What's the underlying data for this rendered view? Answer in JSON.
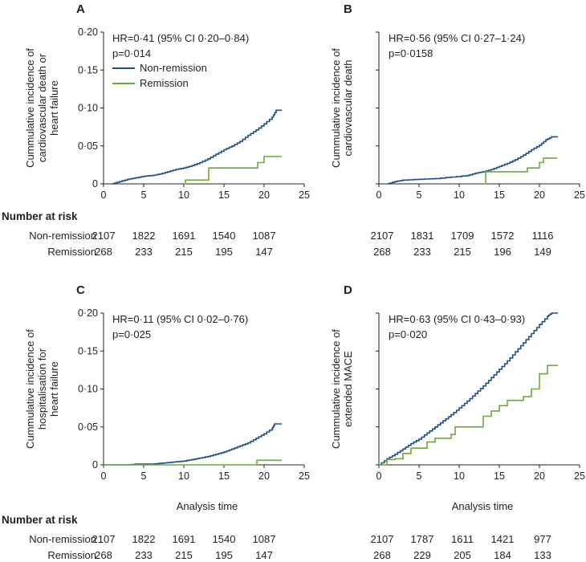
{
  "colors": {
    "non_remission": "#1f4e8c",
    "remission": "#6aaa3a",
    "axis": "#231f20"
  },
  "legend": {
    "non_remission": "Non-remission",
    "remission": "Remission"
  },
  "risk_table": {
    "title": "Number at risk",
    "row_labels": [
      "Non-remission",
      "Remission"
    ]
  },
  "chart_data": [
    {
      "type": "line",
      "panel": "A",
      "ylabel": [
        "Cummulative incidence of",
        "cardiovascular death or",
        "heart failure"
      ],
      "xlabel": "",
      "xlim": [
        0,
        25
      ],
      "ylim": [
        0,
        0.2
      ],
      "xticks": [
        "0",
        "5",
        "10",
        "15",
        "20",
        "25"
      ],
      "yticks": [
        "0",
        "0·05",
        "0·10",
        "0·15",
        "0·20"
      ],
      "annotation": [
        "HR=0·41 (95% CI 0·20–0·84)",
        "p=0·014"
      ],
      "legend": true,
      "series": [
        {
          "name": "Non-remission",
          "step": false,
          "points": [
            [
              1,
              0
            ],
            [
              2,
              0.003
            ],
            [
              3,
              0.006
            ],
            [
              4,
              0.008
            ],
            [
              5,
              0.01
            ],
            [
              6,
              0.011
            ],
            [
              7,
              0.013
            ],
            [
              8,
              0.016
            ],
            [
              9,
              0.019
            ],
            [
              10,
              0.021
            ],
            [
              11,
              0.024
            ],
            [
              12,
              0.028
            ],
            [
              13,
              0.033
            ],
            [
              14,
              0.039
            ],
            [
              15,
              0.045
            ],
            [
              16,
              0.05
            ],
            [
              17,
              0.056
            ],
            [
              18,
              0.064
            ],
            [
              19,
              0.071
            ],
            [
              20,
              0.079
            ],
            [
              21,
              0.088
            ],
            [
              21.5,
              0.097
            ],
            [
              22.2,
              0.097
            ]
          ]
        },
        {
          "name": "Remission",
          "step": true,
          "points": [
            [
              10,
              0
            ],
            [
              10.2,
              0.005
            ],
            [
              13,
              0.005
            ],
            [
              13.1,
              0.021
            ],
            [
              18.5,
              0.021
            ],
            [
              19.2,
              0.028
            ],
            [
              20,
              0.036
            ],
            [
              22.2,
              0.036
            ]
          ]
        }
      ],
      "risk": {
        "times": [
          "0",
          "5",
          "10",
          "15",
          "20"
        ],
        "non_remission": [
          "2107",
          "1822",
          "1691",
          "1540",
          "1087"
        ],
        "remission": [
          "268",
          "233",
          "215",
          "195",
          "147"
        ]
      }
    },
    {
      "type": "line",
      "panel": "B",
      "ylabel": [
        "Cummulative incidence of",
        "cardiovascular death"
      ],
      "xlabel": "",
      "xlim": [
        0,
        25
      ],
      "ylim": [
        0,
        0.2
      ],
      "xticks": [
        "0",
        "5",
        "10",
        "15",
        "20",
        "25"
      ],
      "yticks": [],
      "annotation": [
        "HR=0·56 (95% CI 0·27–1·24)",
        "p=0·0158"
      ],
      "legend": false,
      "series": [
        {
          "name": "Non-remission",
          "step": false,
          "points": [
            [
              1,
              0
            ],
            [
              2,
              0.003
            ],
            [
              3,
              0.005
            ],
            [
              5,
              0.006
            ],
            [
              7,
              0.007
            ],
            [
              9,
              0.009
            ],
            [
              11,
              0.011
            ],
            [
              12,
              0.014
            ],
            [
              13,
              0.016
            ],
            [
              14,
              0.019
            ],
            [
              15,
              0.023
            ],
            [
              16,
              0.027
            ],
            [
              17,
              0.032
            ],
            [
              18,
              0.038
            ],
            [
              19,
              0.045
            ],
            [
              20,
              0.051
            ],
            [
              20.8,
              0.058
            ],
            [
              21.5,
              0.062
            ],
            [
              22.3,
              0.062
            ]
          ]
        },
        {
          "name": "Remission",
          "step": true,
          "points": [
            [
              13,
              0
            ],
            [
              13.3,
              0.016
            ],
            [
              18,
              0.016
            ],
            [
              18.5,
              0.021
            ],
            [
              20,
              0.028
            ],
            [
              20.5,
              0.034
            ],
            [
              22.2,
              0.034
            ]
          ]
        }
      ],
      "risk": {
        "times": [
          "0",
          "5",
          "10",
          "15",
          "20"
        ],
        "non_remission": [
          "2107",
          "1831",
          "1709",
          "1572",
          "1116"
        ],
        "remission": [
          "268",
          "233",
          "215",
          "196",
          "149"
        ]
      }
    },
    {
      "type": "line",
      "panel": "C",
      "ylabel": [
        "Cummulative incidence of",
        "hospitalisation for",
        "heart failure"
      ],
      "xlabel": "Analysis time",
      "xlim": [
        0,
        25
      ],
      "ylim": [
        0,
        0.2
      ],
      "xticks": [
        "0",
        "5",
        "10",
        "15",
        "20",
        "25"
      ],
      "yticks": [
        "0",
        "0·05",
        "0·10",
        "0·15",
        "0·20"
      ],
      "annotation": [
        "HR=0·11 (95% CI 0·02–0·76)",
        "p=0·025"
      ],
      "legend": false,
      "series": [
        {
          "name": "Non-remission",
          "step": false,
          "points": [
            [
              0,
              0
            ],
            [
              3,
              0
            ],
            [
              4,
              0.001
            ],
            [
              6,
              0.001
            ],
            [
              7,
              0.002
            ],
            [
              8,
              0.003
            ],
            [
              9,
              0.004
            ],
            [
              10,
              0.005
            ],
            [
              11,
              0.007
            ],
            [
              12,
              0.009
            ],
            [
              13,
              0.011
            ],
            [
              14,
              0.014
            ],
            [
              15,
              0.017
            ],
            [
              16,
              0.021
            ],
            [
              17,
              0.025
            ],
            [
              18,
              0.029
            ],
            [
              19,
              0.035
            ],
            [
              20,
              0.041
            ],
            [
              21,
              0.048
            ],
            [
              21.3,
              0.054
            ],
            [
              22.2,
              0.054
            ]
          ]
        },
        {
          "name": "Remission",
          "step": true,
          "points": [
            [
              0,
              0
            ],
            [
              19,
              0
            ],
            [
              19.1,
              0.006
            ],
            [
              22.2,
              0.006
            ]
          ]
        }
      ],
      "risk": {
        "times": [
          "0",
          "5",
          "10",
          "15",
          "20"
        ],
        "non_remission": [
          "2107",
          "1822",
          "1691",
          "1540",
          "1087"
        ],
        "remission": [
          "268",
          "233",
          "215",
          "195",
          "147"
        ]
      }
    },
    {
      "type": "line",
      "panel": "D",
      "ylabel": [
        "Cummulative incidence of",
        "extended MACE"
      ],
      "xlabel": "Analysis time",
      "xlim": [
        0,
        25
      ],
      "ylim": [
        0,
        0.2
      ],
      "xticks": [
        "0",
        "5",
        "10",
        "15",
        "20",
        "25"
      ],
      "yticks": [],
      "annotation": [
        "HR=0·63 (95% CI 0·43–0·93)",
        "p=0·020"
      ],
      "legend": false,
      "series": [
        {
          "name": "Non-remission",
          "step": false,
          "points": [
            [
              0,
              0
            ],
            [
              1,
              0.008
            ],
            [
              2,
              0.014
            ],
            [
              3,
              0.021
            ],
            [
              4,
              0.028
            ],
            [
              5,
              0.034
            ],
            [
              6,
              0.042
            ],
            [
              7,
              0.05
            ],
            [
              8,
              0.058
            ],
            [
              9,
              0.066
            ],
            [
              10,
              0.075
            ],
            [
              11,
              0.084
            ],
            [
              12,
              0.094
            ],
            [
              13,
              0.104
            ],
            [
              14,
              0.115
            ],
            [
              15,
              0.126
            ],
            [
              16,
              0.137
            ],
            [
              17,
              0.149
            ],
            [
              18,
              0.161
            ],
            [
              19,
              0.173
            ],
            [
              20,
              0.185
            ],
            [
              21,
              0.196
            ],
            [
              21.5,
              0.2
            ],
            [
              22.3,
              0.2
            ]
          ]
        },
        {
          "name": "Remission",
          "step": true,
          "points": [
            [
              0,
              0
            ],
            [
              1,
              0.007
            ],
            [
              2,
              0.008
            ],
            [
              3,
              0.015
            ],
            [
              4,
              0.022
            ],
            [
              5,
              0.022
            ],
            [
              6,
              0.03
            ],
            [
              7,
              0.035
            ],
            [
              9,
              0.04
            ],
            [
              9.5,
              0.05
            ],
            [
              12,
              0.05
            ],
            [
              13,
              0.064
            ],
            [
              14,
              0.071
            ],
            [
              15,
              0.078
            ],
            [
              16,
              0.085
            ],
            [
              18,
              0.09
            ],
            [
              19,
              0.1
            ],
            [
              20,
              0.12
            ],
            [
              21,
              0.131
            ],
            [
              22.3,
              0.131
            ]
          ]
        }
      ],
      "risk": {
        "times": [
          "0",
          "5",
          "10",
          "15",
          "20"
        ],
        "non_remission": [
          "2107",
          "1787",
          "1611",
          "1421",
          "977"
        ],
        "remission": [
          "268",
          "229",
          "205",
          "184",
          "133"
        ]
      }
    }
  ]
}
